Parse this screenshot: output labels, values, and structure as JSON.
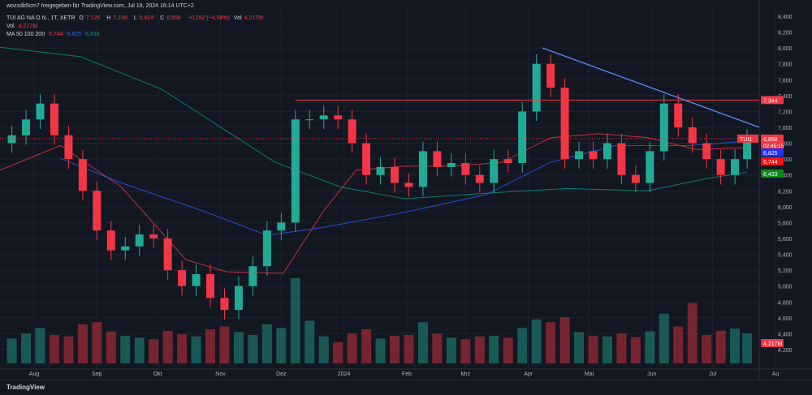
{
  "header": {
    "shared_by": "wozsdb5cm7 freigegeben für TradingView.com, Jul 18, 2024 16:14 UTC+2",
    "symbol": "TUI AG NA O.N., 1T, XETR",
    "o_label": "O",
    "o": "7,126",
    "h_label": "H",
    "h": "7,198",
    "l_label": "L",
    "l": "6,824",
    "c_label": "C",
    "c": "6,858",
    "change": "−0,292 (−4,08%)",
    "vol_label": "Vol",
    "vol": "4,217M",
    "vol_row_label": "Vol",
    "vol_row_value": "4,217M",
    "ma_label": "MA 50 100 200",
    "ma50": "6,744",
    "ma100": "6,825",
    "ma200": "6,433"
  },
  "footer": {
    "logo": "TradingView"
  },
  "colors": {
    "up": "#22ab94",
    "down": "#f23645",
    "ma50": "#f23645",
    "ma100": "#2962ff",
    "ma200": "#089981",
    "trendline": "#5b8cff",
    "level": "#f23645",
    "background": "#131722"
  },
  "chart_data": {
    "type": "candlestick",
    "symbol_tag": "TUI1",
    "last_price_label": "6,858",
    "countdown": "02:45:15",
    "ylim": [
      4100,
      8450
    ],
    "y_ticks": [
      "8,400",
      "8,200",
      "8,000",
      "7,800",
      "7,600",
      "7,400",
      "7,200",
      "7,000",
      "6,800",
      "6,600",
      "6,400",
      "6,200",
      "6,000",
      "5,800",
      "5,600",
      "5,400",
      "5,200",
      "5,000",
      "4,800",
      "4,600",
      "4,400",
      "4,200"
    ],
    "x_ticks": [
      {
        "label": "Aug",
        "date": "2023-08-01"
      },
      {
        "label": "Sep",
        "date": "2023-09-01"
      },
      {
        "label": "Okt",
        "date": "2023-10-01"
      },
      {
        "label": "Nov",
        "date": "2023-11-01"
      },
      {
        "label": "Dez",
        "date": "2023-12-01"
      },
      {
        "label": "2024",
        "date": "2024-01-01"
      },
      {
        "label": "Feb",
        "date": "2024-02-01"
      },
      {
        "label": "Mrz",
        "date": "2024-03-01"
      },
      {
        "label": "Apr",
        "date": "2024-04-01"
      },
      {
        "label": "Mai",
        "date": "2024-05-01"
      },
      {
        "label": "Jun",
        "date": "2024-06-01"
      },
      {
        "label": "Jul",
        "date": "2024-07-01"
      },
      {
        "label": "Au",
        "date": "2024-08-01"
      }
    ],
    "dates": [
      "2023-07-21",
      "2023-07-28",
      "2023-08-04",
      "2023-08-11",
      "2023-08-18",
      "2023-08-25",
      "2023-09-01",
      "2023-09-08",
      "2023-09-15",
      "2023-09-22",
      "2023-09-29",
      "2023-10-06",
      "2023-10-13",
      "2023-10-20",
      "2023-10-27",
      "2023-11-03",
      "2023-11-10",
      "2023-11-17",
      "2023-11-24",
      "2023-12-01",
      "2023-12-08",
      "2023-12-15",
      "2023-12-22",
      "2023-12-29",
      "2024-01-05",
      "2024-01-12",
      "2024-01-19",
      "2024-01-26",
      "2024-02-02",
      "2024-02-09",
      "2024-02-16",
      "2024-02-23",
      "2024-03-01",
      "2024-03-08",
      "2024-03-15",
      "2024-03-22",
      "2024-03-29",
      "2024-04-05",
      "2024-04-12",
      "2024-04-19",
      "2024-04-26",
      "2024-05-03",
      "2024-05-10",
      "2024-05-17",
      "2024-05-24",
      "2024-05-31",
      "2024-06-07",
      "2024-06-14",
      "2024-06-21",
      "2024-06-28",
      "2024-07-05",
      "2024-07-12",
      "2024-07-18"
    ],
    "close": [
      6900,
      7100,
      7300,
      6900,
      6600,
      6200,
      5700,
      5450,
      5500,
      5650,
      5600,
      5200,
      5000,
      5150,
      4850,
      4700,
      5000,
      5250,
      5700,
      5800,
      7100,
      7100,
      7150,
      7100,
      6800,
      6400,
      6500,
      6300,
      6250,
      6700,
      6500,
      6550,
      6400,
      6300,
      6600,
      6550,
      7200,
      7800,
      7500,
      6600,
      6700,
      6600,
      6800,
      6400,
      6300,
      6700,
      7300,
      7000,
      6800,
      6600,
      6400,
      6600,
      6858
    ],
    "volume_m": [
      3.5,
      4.2,
      5.0,
      4.0,
      3.8,
      5.5,
      5.8,
      4.5,
      3.9,
      3.6,
      3.4,
      4.6,
      4.1,
      3.8,
      4.8,
      5.2,
      4.4,
      4.0,
      5.5,
      5.0,
      12.0,
      6.0,
      3.8,
      3.0,
      4.2,
      4.8,
      3.5,
      3.9,
      4.0,
      5.8,
      4.2,
      3.6,
      3.4,
      3.8,
      3.9,
      3.6,
      5.0,
      6.2,
      5.8,
      6.5,
      4.4,
      3.9,
      3.8,
      4.2,
      3.7,
      4.5,
      7.0,
      5.2,
      8.5,
      4.0,
      4.6,
      4.9,
      4.217
    ],
    "series": [
      {
        "name": "MA 50",
        "values": [
          [
            "2023-07-15",
            6460
          ],
          [
            "2023-08-14",
            6770
          ],
          [
            "2023-09-13",
            6250
          ],
          [
            "2023-10-15",
            5330
          ],
          [
            "2023-11-04",
            5180
          ],
          [
            "2023-12-02",
            5160
          ],
          [
            "2023-12-22",
            5950
          ],
          [
            "2024-01-07",
            6460
          ],
          [
            "2024-01-31",
            6510
          ],
          [
            "2024-02-24",
            6510
          ],
          [
            "2024-03-19",
            6560
          ],
          [
            "2024-04-12",
            6870
          ],
          [
            "2024-05-06",
            6920
          ],
          [
            "2024-05-30",
            6870
          ],
          [
            "2024-06-23",
            6720
          ],
          [
            "2024-07-18",
            6744
          ]
        ]
      },
      {
        "name": "MA 100",
        "values": [
          [
            "2023-08-14",
            6610
          ],
          [
            "2023-09-13",
            6300
          ],
          [
            "2023-10-23",
            5950
          ],
          [
            "2023-11-24",
            5640
          ],
          [
            "2023-12-22",
            5740
          ],
          [
            "2024-01-31",
            5930
          ],
          [
            "2024-03-11",
            6150
          ],
          [
            "2024-04-12",
            6560
          ],
          [
            "2024-05-14",
            6770
          ],
          [
            "2024-06-19",
            6770
          ],
          [
            "2024-07-18",
            6825
          ]
        ]
      },
      {
        "name": "MA 200",
        "values": [
          [
            "2023-07-15",
            8010
          ],
          [
            "2023-08-24",
            7890
          ],
          [
            "2023-10-03",
            7480
          ],
          [
            "2023-10-31",
            7020
          ],
          [
            "2023-11-28",
            6560
          ],
          [
            "2023-12-30",
            6250
          ],
          [
            "2024-01-31",
            6100
          ],
          [
            "2024-03-11",
            6170
          ],
          [
            "2024-04-20",
            6230
          ],
          [
            "2024-05-30",
            6200
          ],
          [
            "2024-06-27",
            6350
          ],
          [
            "2024-07-18",
            6433
          ]
        ]
      }
    ],
    "annotations": {
      "horizontal_level": {
        "value": 7344,
        "label": "7,344",
        "from": "2023-12-08"
      },
      "trendline": {
        "from": [
          "2024-04-08",
          8000
        ],
        "to": [
          "2024-07-24",
          7000
        ]
      },
      "ma_labels": [
        "6,825",
        "6,744",
        "6,433"
      ],
      "volume_label": "4,217M"
    }
  }
}
